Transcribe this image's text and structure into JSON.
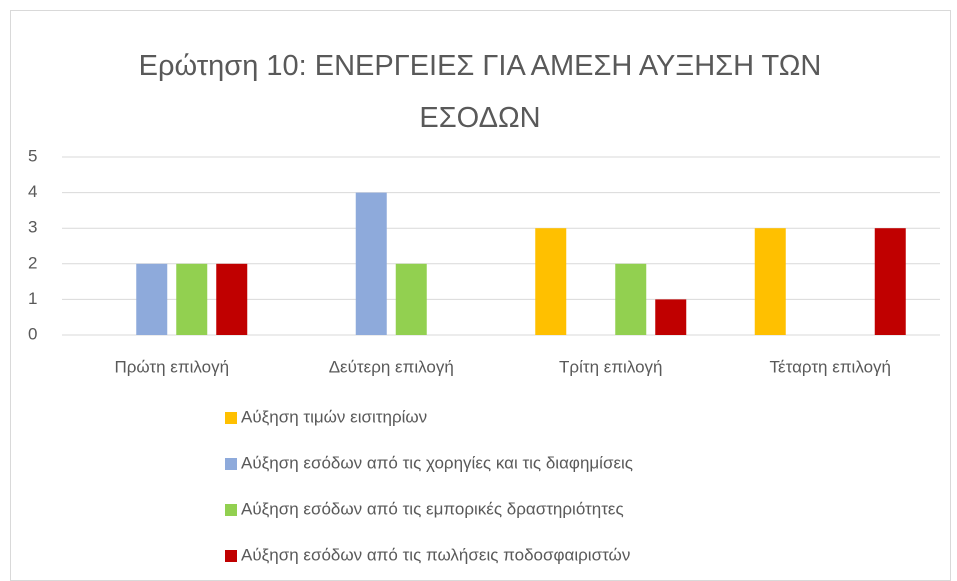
{
  "chart_data": {
    "type": "bar",
    "title": "Ερώτηση 10: ΕΝΕΡΓΕΙΕΣ ΓΙΑ ΑΜΕΣΗ ΑΥΞΗΣΗ ΤΩΝ ΕΣΟΔΩΝ",
    "categories": [
      "Πρώτη επιλογή",
      "Δεύτερη επιλογή",
      "Τρίτη επιλογή",
      "Τέταρτη επιλογή"
    ],
    "series": [
      {
        "name": "Αύξηση τιμών εισιτηρίων",
        "color": "#ffc000",
        "values": [
          0,
          0,
          3,
          3
        ]
      },
      {
        "name": "Αύξηση εσόδων από τις χορηγίες και τις διαφημίσεις",
        "color": "#8eaadb",
        "values": [
          2,
          4,
          0,
          0
        ]
      },
      {
        "name": "Αύξηση εσόδων από τις εμπορικές δραστηριότητες",
        "color": "#92d050",
        "values": [
          2,
          2,
          2,
          0
        ]
      },
      {
        "name": "Αύξηση εσόδων από τις πωλήσεις ποδοσφαιριστών",
        "color": "#c00000",
        "values": [
          2,
          0,
          1,
          3
        ]
      }
    ],
    "ylim": [
      0,
      5
    ],
    "yticks": [
      0,
      1,
      2,
      3,
      4,
      5
    ],
    "grid": true,
    "legend": "bottom"
  }
}
